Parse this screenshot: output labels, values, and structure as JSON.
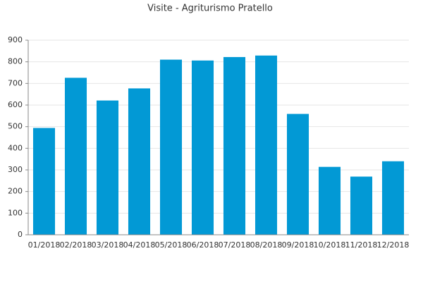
{
  "chart_data": {
    "type": "bar",
    "title": "Visite - Agriturismo Pratello",
    "categories": [
      "01/2018",
      "02/2018",
      "03/2018",
      "04/2018",
      "05/2018",
      "06/2018",
      "07/2018",
      "08/2018",
      "09/2018",
      "10/2018",
      "11/2018",
      "12/2018"
    ],
    "values": [
      494,
      726,
      621,
      677,
      810,
      806,
      822,
      829,
      559,
      314,
      269,
      340
    ],
    "color": "#0299d5",
    "ylim": [
      0,
      900
    ],
    "yticks": [
      0,
      100,
      200,
      300,
      400,
      500,
      600,
      700,
      800,
      900
    ],
    "grid": true
  }
}
